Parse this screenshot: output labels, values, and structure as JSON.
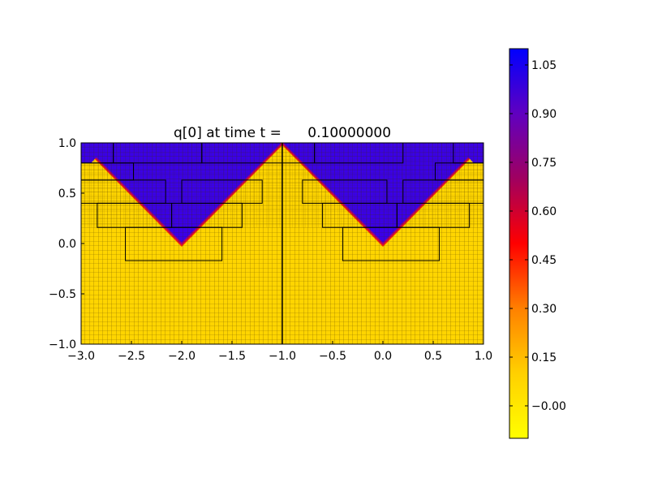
{
  "chart_data": {
    "type": "heatmap",
    "title": "q[0] at time t =      0.10000000",
    "xlabel": "",
    "ylabel": "",
    "xlim": [
      -3.0,
      1.0
    ],
    "ylim": [
      -1.0,
      1.0
    ],
    "xticks": [
      "−3.0",
      "−2.5",
      "−2.0",
      "−1.5",
      "−1.0",
      "−0.5",
      "0.0",
      "0.5",
      "1.0"
    ],
    "xtick_values": [
      -3.0,
      -2.5,
      -2.0,
      -1.5,
      -1.0,
      -0.5,
      0.0,
      0.5,
      1.0
    ],
    "yticks": [
      "−1.0",
      "−0.5",
      "0.0",
      "0.5",
      "1.0"
    ],
    "ytick_values": [
      -1.0,
      -0.5,
      0.0,
      0.5,
      1.0
    ],
    "colorbar": {
      "range": [
        -0.1,
        1.1
      ],
      "ticks": [
        "−0.00",
        "0.15",
        "0.30",
        "0.45",
        "0.60",
        "0.75",
        "0.90",
        "1.05"
      ],
      "tick_values": [
        0.0,
        0.15,
        0.3,
        0.45,
        0.6,
        0.75,
        0.9,
        1.05
      ],
      "colors": [
        "#ffff00",
        "#ffd000",
        "#ff8000",
        "#ff0000",
        "#a00060",
        "#6000c0",
        "#0000ff"
      ]
    },
    "field": {
      "low_value": 0.0,
      "high_value": 1.05,
      "low_color": "#ffd500",
      "high_color": "#3a00e8",
      "v_shapes": [
        {
          "center_x": -2.0,
          "base_y": 0.0
        },
        {
          "center_x": 0.0,
          "base_y": 0.0
        }
      ],
      "domain_split_x": -1.0
    },
    "grid": true,
    "patch_outlines": [
      [
        -3.0,
        0.8,
        -2.68,
        1.0
      ],
      [
        -2.68,
        0.8,
        -1.8,
        1.0
      ],
      [
        -1.8,
        0.8,
        -1.0,
        1.0
      ],
      [
        -3.0,
        0.63,
        -2.48,
        0.8
      ],
      [
        -3.0,
        0.4,
        -2.16,
        0.63
      ],
      [
        -2.0,
        0.4,
        -1.2,
        0.63
      ],
      [
        -2.84,
        0.16,
        -2.1,
        0.4
      ],
      [
        -2.1,
        0.16,
        -1.4,
        0.4
      ],
      [
        -2.56,
        -0.17,
        -1.6,
        0.16
      ],
      [
        -1.0,
        0.8,
        -0.68,
        1.0
      ],
      [
        -0.68,
        0.8,
        0.2,
        1.0
      ],
      [
        0.7,
        0.8,
        1.0,
        1.0
      ],
      [
        0.52,
        0.63,
        1.0,
        0.8
      ],
      [
        -0.8,
        0.4,
        0.04,
        0.63
      ],
      [
        0.2,
        0.4,
        1.0,
        0.63
      ],
      [
        -0.6,
        0.16,
        0.14,
        0.4
      ],
      [
        0.14,
        0.16,
        0.86,
        0.4
      ],
      [
        -0.4,
        -0.17,
        0.56,
        0.16
      ]
    ]
  }
}
